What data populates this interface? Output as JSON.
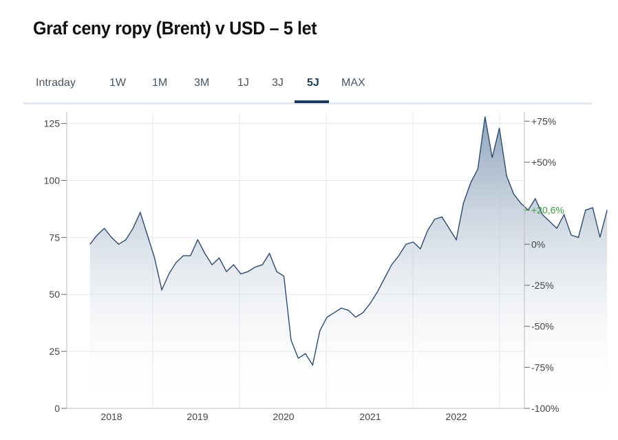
{
  "title": "Graf ceny ropy (Brent) v USD – 5 let",
  "tabs": [
    {
      "label": "Intraday",
      "active": false
    },
    {
      "label": "1W",
      "active": false
    },
    {
      "label": "1M",
      "active": false
    },
    {
      "label": "3M",
      "active": false
    },
    {
      "label": "1J",
      "active": false
    },
    {
      "label": "3J",
      "active": false
    },
    {
      "label": "5J",
      "active": true
    },
    {
      "label": "MAX",
      "active": false
    }
  ],
  "colors": {
    "line": "#2c4a6e",
    "area_top": "#8fa3bc",
    "area_bottom": "#ffffff",
    "grid": "#e4e8ed",
    "positive": "#3a9a3e",
    "active_tab": "#1d3a5c"
  },
  "chart_data": {
    "type": "area",
    "title": "",
    "xlabel": "",
    "ylabel": "",
    "x_ticks": [
      "2018",
      "2019",
      "2020",
      "2021",
      "2022"
    ],
    "y_ticks": [
      0,
      25,
      50,
      75,
      100,
      125
    ],
    "ylim": [
      0,
      130
    ],
    "y2_ticks": [
      "+75%",
      "+50%",
      "0%",
      "-25%",
      "-50%",
      "-75%",
      "-100%"
    ],
    "current_change_label": "+20,6%",
    "grid": true,
    "series": [
      {
        "x": [
          "2017-10",
          "2017-11",
          "2017-12",
          "2018-01",
          "2018-02",
          "2018-03",
          "2018-04",
          "2018-05",
          "2018-06",
          "2018-07",
          "2018-08",
          "2018-09",
          "2018-10",
          "2018-11",
          "2018-12",
          "2019-01",
          "2019-02",
          "2019-03",
          "2019-04",
          "2019-05",
          "2019-06",
          "2019-07",
          "2019-08",
          "2019-09",
          "2019-10",
          "2019-11",
          "2019-12",
          "2020-01",
          "2020-02",
          "2020-03",
          "2020-04",
          "2020-05",
          "2020-06",
          "2020-07",
          "2020-08",
          "2020-09",
          "2020-10",
          "2020-11",
          "2020-12",
          "2021-01",
          "2021-02",
          "2021-03",
          "2021-04",
          "2021-05",
          "2021-06",
          "2021-07",
          "2021-08",
          "2021-09",
          "2021-10",
          "2021-11",
          "2021-12",
          "2022-01",
          "2022-02",
          "2022-03",
          "2022-04",
          "2022-05",
          "2022-06",
          "2022-07",
          "2022-08",
          "2022-09",
          "2022-10",
          "2022-11",
          "2022-12",
          "2023-01",
          "2023-02",
          "2023-03",
          "2023-04",
          "2023-05",
          "2023-06",
          "2023-07",
          "2023-08",
          "2023-09",
          "2023-10"
        ],
        "values": [
          72,
          76,
          79,
          75,
          72,
          74,
          79,
          86,
          76,
          66,
          52,
          59,
          64,
          67,
          67,
          74,
          68,
          63,
          66,
          60,
          63,
          59,
          60,
          62,
          63,
          68,
          60,
          58,
          30,
          22,
          24,
          19,
          34,
          40,
          42,
          44,
          43,
          40,
          42,
          46,
          51,
          57,
          63,
          67,
          72,
          73,
          70,
          78,
          83,
          84,
          79,
          74,
          90,
          99,
          105,
          128,
          110,
          123,
          102,
          94,
          90,
          87,
          92,
          85,
          82,
          79,
          85,
          76,
          75,
          87,
          88,
          75,
          87
        ]
      }
    ]
  }
}
